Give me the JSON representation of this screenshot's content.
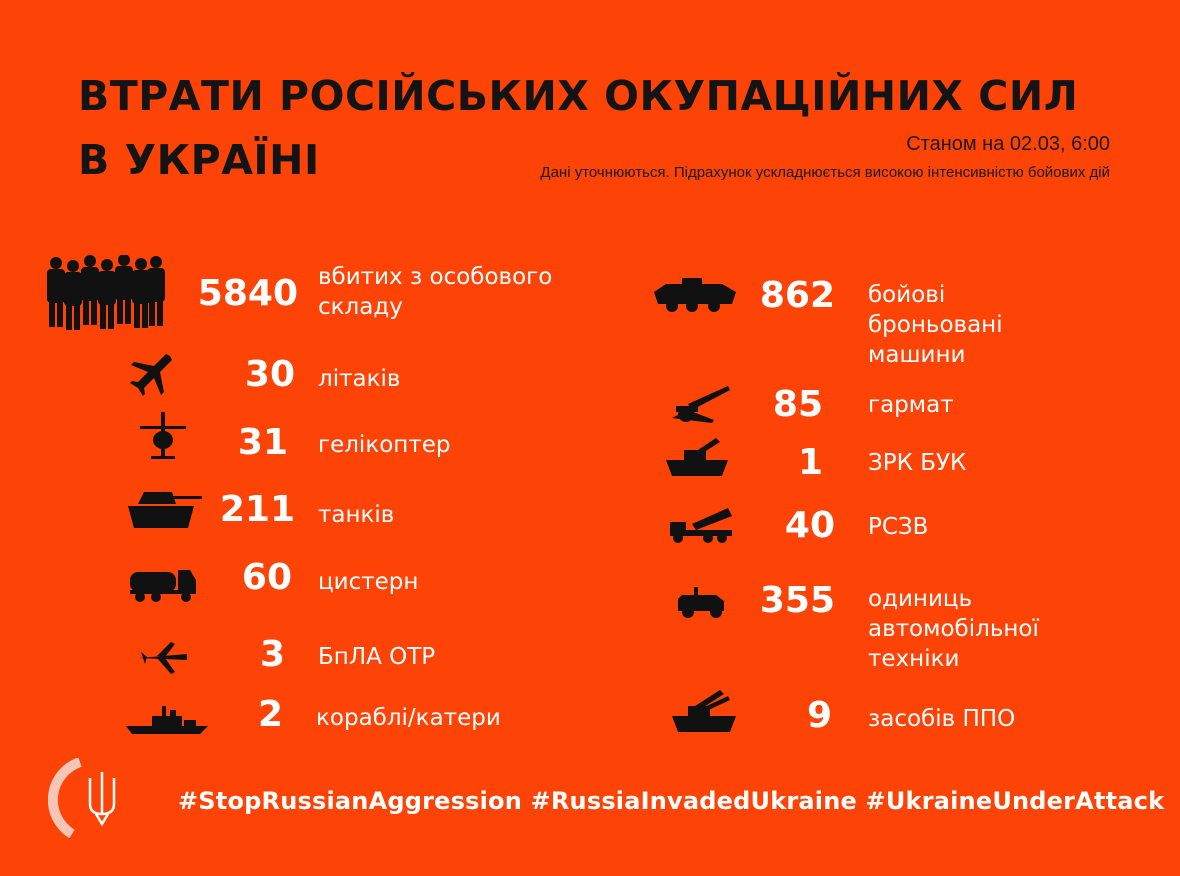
{
  "title_line1": "ВТРАТИ РОСІЙСЬКИХ ОКУПАЦІЙНИХ СИЛ",
  "title_line2": "В УКРАЇНІ",
  "as_of": "Станом на 02.03, 6:00",
  "note": "Дані уточнюються. Підрахунок ускладнюється високою інтенсивністю бойових дій",
  "colors": {
    "background": "#fd4306",
    "numbers": "#ffffff",
    "icons": "#111111"
  },
  "left": [
    {
      "icon": "soldiers-icon",
      "value": "5840",
      "label": "вбитих з особового складу"
    },
    {
      "icon": "airplane-icon",
      "value": "30",
      "label": "літаків"
    },
    {
      "icon": "helicopter-icon",
      "value": "31",
      "label": "гелікоптер"
    },
    {
      "icon": "tank-icon",
      "value": "211",
      "label": "танків"
    },
    {
      "icon": "tanker-truck-icon",
      "value": "60",
      "label": "цистерн"
    },
    {
      "icon": "drone-icon",
      "value": "3",
      "label": "БпЛА ОТР"
    },
    {
      "icon": "ship-icon",
      "value": "2",
      "label": "кораблі/катери"
    }
  ],
  "right": [
    {
      "icon": "apc-icon",
      "value": "862",
      "label": "бойові броньовані машини"
    },
    {
      "icon": "artillery-icon",
      "value": "85",
      "label": "гармат"
    },
    {
      "icon": "buk-icon",
      "value": "1",
      "label": "ЗРК БУК"
    },
    {
      "icon": "mlrs-icon",
      "value": "40",
      "label": "РСЗВ"
    },
    {
      "icon": "vehicle-icon",
      "value": "355",
      "label": "одиниць автомобільної техніки"
    },
    {
      "icon": "air-defense-icon",
      "value": "9",
      "label": "засобів ППО"
    }
  ],
  "hashtags": "#StopRussianAggression #RussiaInvadedUkraine #UkraineUnderAttack",
  "logo": {
    "icon": "trident-icon"
  }
}
